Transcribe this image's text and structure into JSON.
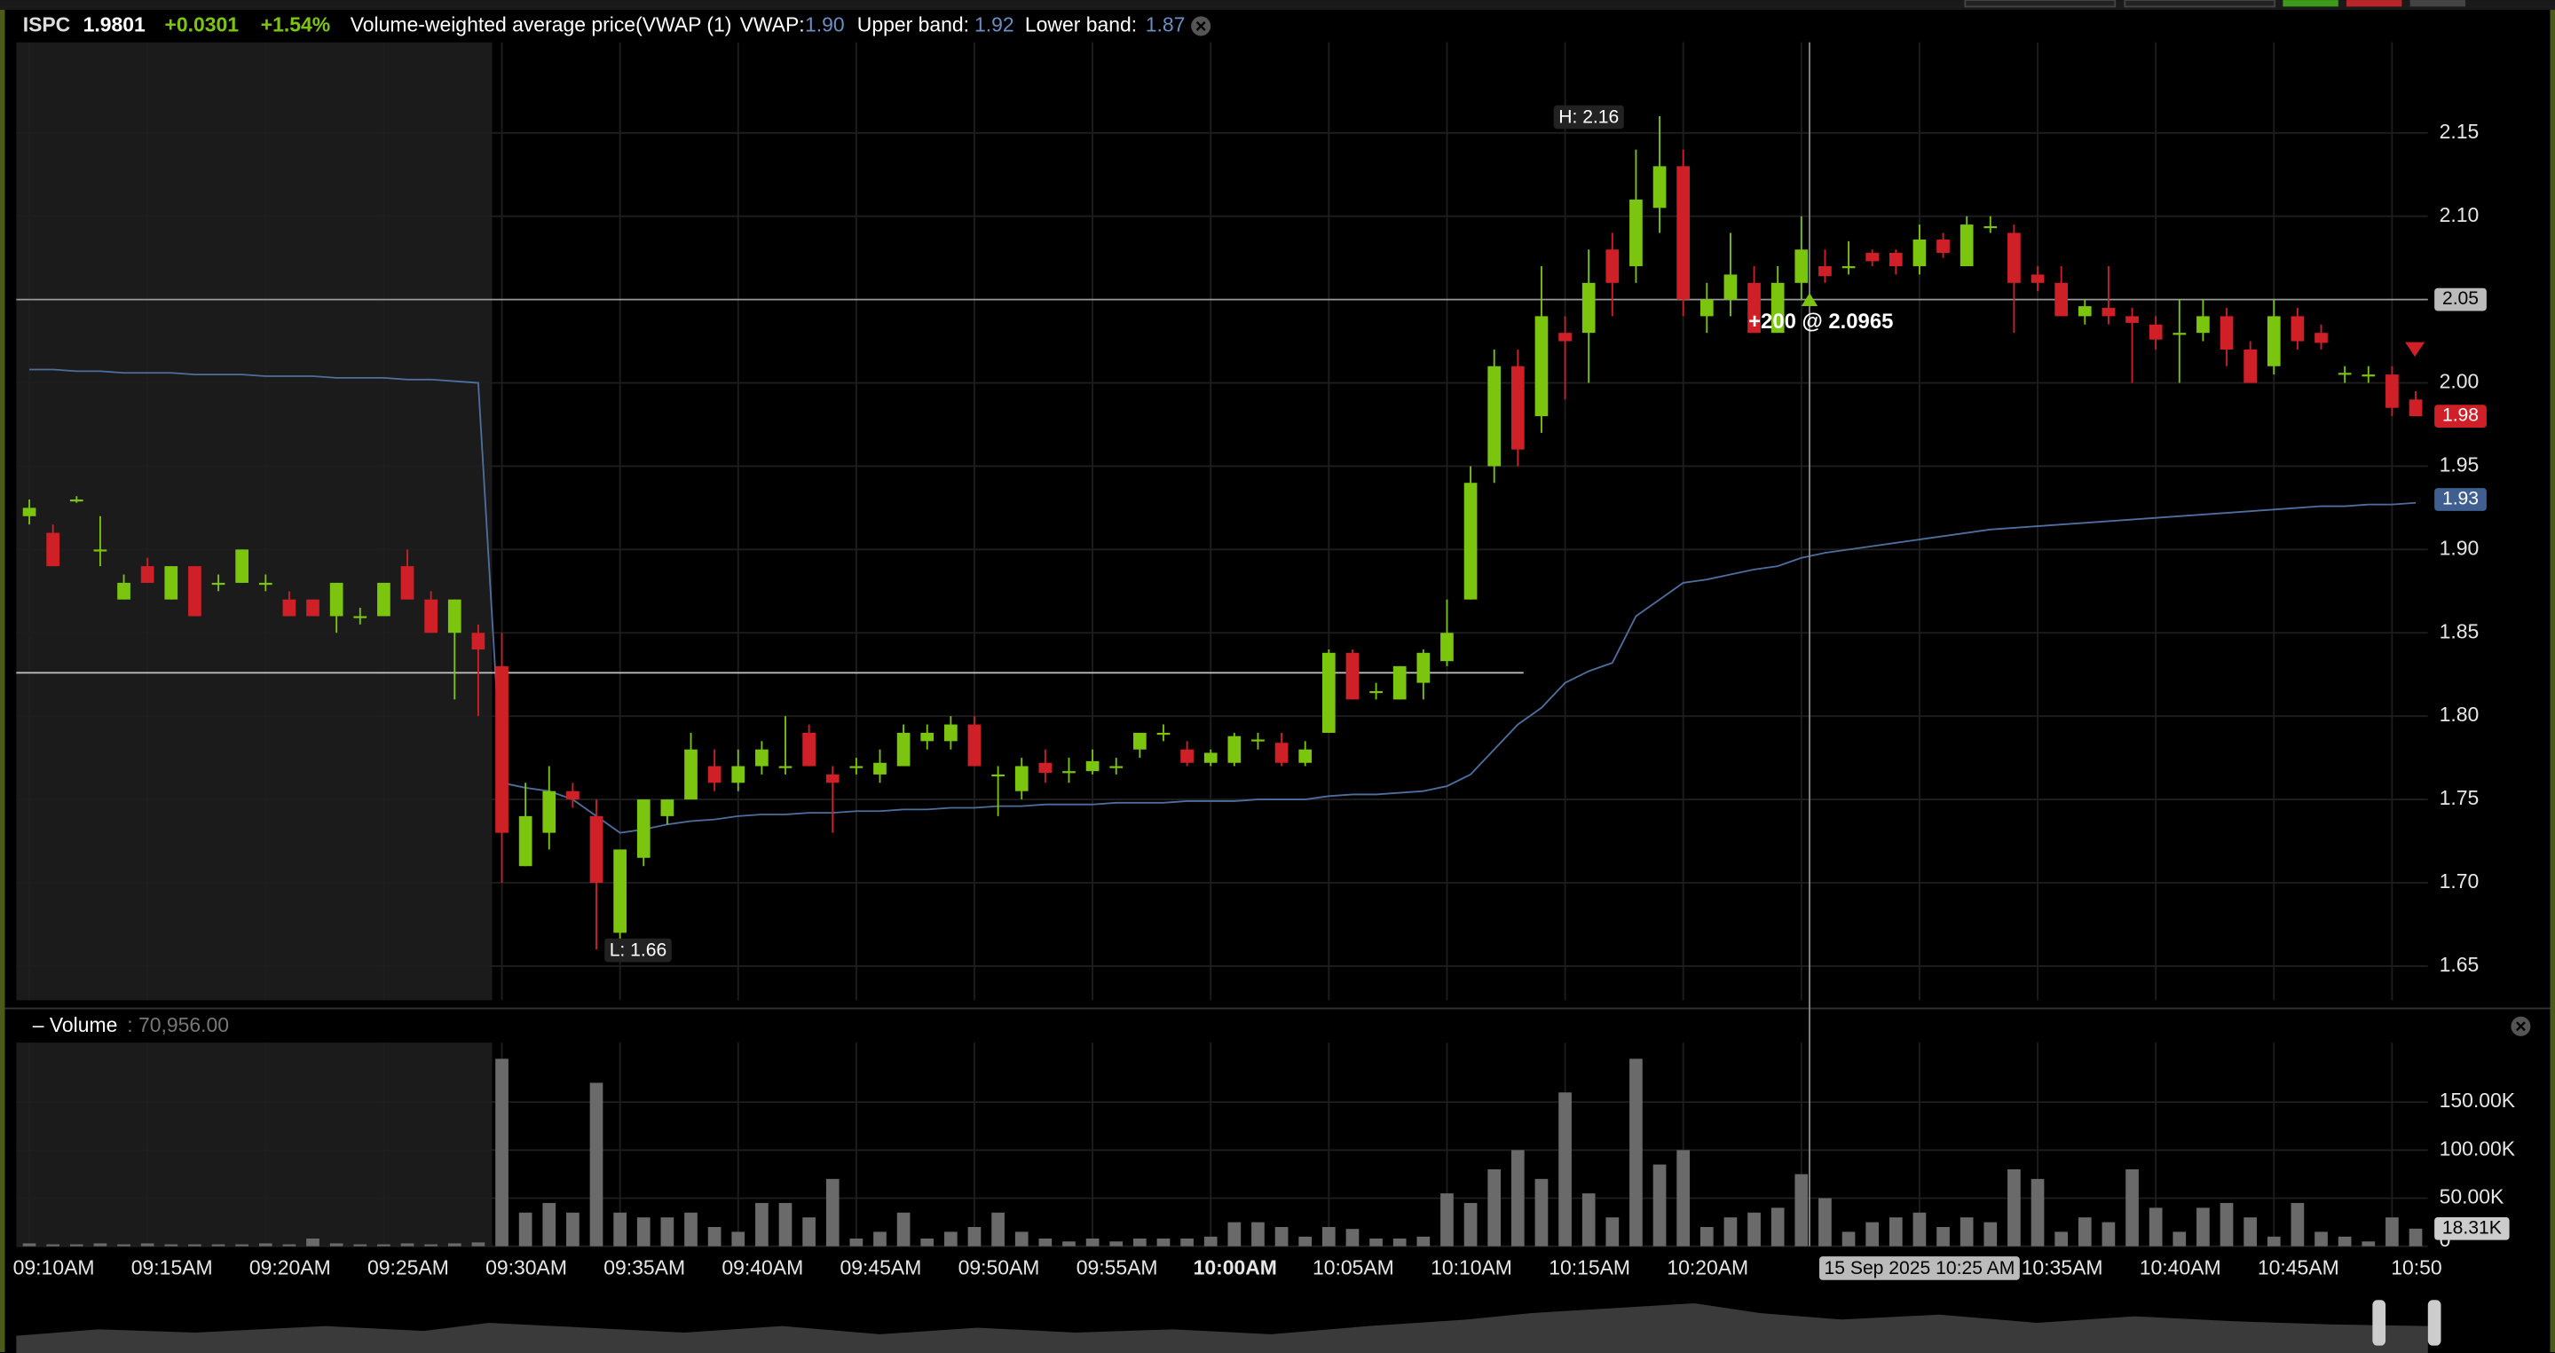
{
  "header": {
    "symbol": "ISPC",
    "price": "1.9801",
    "change": "+0.0301",
    "change_pct": "+1.54%",
    "study": "Volume-weighted average price(VWAP (1)",
    "vwap_label": "VWAP:",
    "vwap_value": "1.90",
    "upper_label": "Upper band:",
    "upper_value": "1.92",
    "lower_label": "Lower band:",
    "lower_value": "1.87"
  },
  "volume_pane": {
    "title": "– Volume",
    "value": ": 70,956.00",
    "last_tag": "18.31K"
  },
  "annotations": {
    "high": "H: 2.16",
    "low": "L: 1.66",
    "fill": "+200 @ 2.0965",
    "crosshair": "15 Sep 2025 10:25 AM"
  },
  "chart_data": {
    "type": "candlestick",
    "categories": [
      "09:10AM",
      null,
      null,
      null,
      null,
      "09:15AM",
      null,
      null,
      null,
      null,
      "09:20AM",
      null,
      null,
      null,
      null,
      "09:25AM",
      null,
      null,
      null,
      null,
      "09:30AM",
      null,
      null,
      null,
      null,
      "09:35AM",
      null,
      null,
      null,
      null,
      "09:40AM",
      null,
      null,
      null,
      null,
      "09:45AM",
      null,
      null,
      null,
      null,
      "09:50AM",
      null,
      null,
      null,
      null,
      "09:55AM",
      null,
      null,
      null,
      null,
      "10:00AM",
      null,
      null,
      null,
      null,
      "10:05AM",
      null,
      null,
      null,
      null,
      "10:10AM",
      null,
      null,
      null,
      null,
      "10:15AM",
      null,
      null,
      null,
      null,
      "10:20AM",
      null,
      null,
      null,
      null,
      null,
      null,
      null,
      null,
      null,
      null,
      null,
      null,
      null,
      null,
      "10:35AM",
      null,
      null,
      null,
      null,
      "10:40AM",
      null,
      null,
      null,
      null,
      "10:45AM",
      null,
      null,
      null,
      null,
      "10:50",
      null
    ],
    "open": [
      1.92,
      1.91,
      1.93,
      1.9,
      1.87,
      1.89,
      1.87,
      1.89,
      1.88,
      1.88,
      1.88,
      1.87,
      1.87,
      1.86,
      1.86,
      1.86,
      1.89,
      1.87,
      1.85,
      1.85,
      1.83,
      1.71,
      1.73,
      1.755,
      1.74,
      1.67,
      1.715,
      1.74,
      1.75,
      1.77,
      1.76,
      1.77,
      1.77,
      1.79,
      1.765,
      1.77,
      1.765,
      1.77,
      1.785,
      1.785,
      1.795,
      1.765,
      1.755,
      1.772,
      1.767,
      1.767,
      1.77,
      1.78,
      1.79,
      1.78,
      1.772,
      1.772,
      1.786,
      1.784,
      1.772,
      1.79,
      1.838,
      1.815,
      1.81,
      1.82,
      1.833,
      1.87,
      1.95,
      2.01,
      1.98,
      2.03,
      2.03,
      2.08,
      2.07,
      2.105,
      2.13,
      2.04,
      2.05,
      2.06,
      2.03,
      2.06,
      2.07,
      2.07,
      2.078,
      2.078,
      2.07,
      2.086,
      2.07,
      2.094,
      2.09,
      2.065,
      2.06,
      2.04,
      2.045,
      2.04,
      2.035,
      2.03,
      2.03,
      2.04,
      2.02,
      2.01,
      2.04,
      2.03,
      2.006,
      2.005,
      2.005,
      1.99
    ],
    "high": [
      1.93,
      1.915,
      1.932,
      1.92,
      1.885,
      1.895,
      1.89,
      1.89,
      1.885,
      1.9,
      1.885,
      1.875,
      1.87,
      1.88,
      1.865,
      1.88,
      1.9,
      1.875,
      1.87,
      1.855,
      1.85,
      1.76,
      1.77,
      1.76,
      1.75,
      1.72,
      1.75,
      1.75,
      1.79,
      1.78,
      1.78,
      1.785,
      1.8,
      1.795,
      1.77,
      1.775,
      1.78,
      1.795,
      1.795,
      1.8,
      1.8,
      1.77,
      1.775,
      1.78,
      1.775,
      1.78,
      1.775,
      1.79,
      1.795,
      1.785,
      1.78,
      1.79,
      1.79,
      1.79,
      1.785,
      1.84,
      1.84,
      1.82,
      1.83,
      1.84,
      1.87,
      1.95,
      2.02,
      2.02,
      2.07,
      2.04,
      2.08,
      2.09,
      2.14,
      2.16,
      2.14,
      2.06,
      2.09,
      2.07,
      2.07,
      2.1,
      2.08,
      2.085,
      2.08,
      2.08,
      2.095,
      2.09,
      2.1,
      2.1,
      2.095,
      2.07,
      2.07,
      2.05,
      2.07,
      2.045,
      2.04,
      2.05,
      2.05,
      2.045,
      2.025,
      2.05,
      2.045,
      2.035,
      2.01,
      2.01,
      2.01,
      1.995
    ],
    "low": [
      1.915,
      1.89,
      1.928,
      1.89,
      1.87,
      1.88,
      1.87,
      1.86,
      1.875,
      1.88,
      1.875,
      1.86,
      1.86,
      1.85,
      1.855,
      1.86,
      1.87,
      1.85,
      1.81,
      1.8,
      1.7,
      1.71,
      1.72,
      1.745,
      1.66,
      1.66,
      1.71,
      1.735,
      1.75,
      1.755,
      1.755,
      1.765,
      1.765,
      1.77,
      1.73,
      1.765,
      1.76,
      1.77,
      1.78,
      1.78,
      1.77,
      1.74,
      1.75,
      1.76,
      1.76,
      1.765,
      1.765,
      1.775,
      1.785,
      1.77,
      1.77,
      1.77,
      1.78,
      1.77,
      1.77,
      1.79,
      1.81,
      1.81,
      1.81,
      1.81,
      1.83,
      1.87,
      1.94,
      1.95,
      1.97,
      1.99,
      2.0,
      2.04,
      2.06,
      2.09,
      2.04,
      2.03,
      2.04,
      2.03,
      2.03,
      2.05,
      2.06,
      2.065,
      2.07,
      2.065,
      2.065,
      2.075,
      2.07,
      2.09,
      2.03,
      2.055,
      2.04,
      2.035,
      2.035,
      2.0,
      2.02,
      2.0,
      2.025,
      2.01,
      2.0,
      2.005,
      2.02,
      2.02,
      2.0,
      2.0,
      1.98,
      1.98
    ],
    "close": [
      1.925,
      1.89,
      1.93,
      1.9,
      1.88,
      1.88,
      1.89,
      1.86,
      1.88,
      1.9,
      1.88,
      1.86,
      1.86,
      1.88,
      1.86,
      1.88,
      1.87,
      1.85,
      1.87,
      1.84,
      1.73,
      1.74,
      1.755,
      1.75,
      1.7,
      1.72,
      1.75,
      1.75,
      1.78,
      1.76,
      1.77,
      1.78,
      1.77,
      1.77,
      1.76,
      1.77,
      1.772,
      1.79,
      1.79,
      1.795,
      1.77,
      1.765,
      1.77,
      1.766,
      1.767,
      1.773,
      1.77,
      1.79,
      1.79,
      1.772,
      1.778,
      1.788,
      1.786,
      1.772,
      1.78,
      1.838,
      1.81,
      1.815,
      1.83,
      1.838,
      1.85,
      1.94,
      2.01,
      1.96,
      2.04,
      2.025,
      2.06,
      2.06,
      2.11,
      2.13,
      2.05,
      2.05,
      2.065,
      2.03,
      2.06,
      2.08,
      2.064,
      2.07,
      2.073,
      2.07,
      2.086,
      2.078,
      2.095,
      2.094,
      2.06,
      2.06,
      2.04,
      2.046,
      2.04,
      2.036,
      2.026,
      2.03,
      2.04,
      2.02,
      2.0,
      2.04,
      2.025,
      2.024,
      2.006,
      2.005,
      1.985,
      1.98
    ],
    "vwap": [
      2.008,
      2.008,
      2.007,
      2.007,
      2.006,
      2.006,
      2.006,
      2.005,
      2.005,
      2.005,
      2.004,
      2.004,
      2.004,
      2.003,
      2.003,
      2.003,
      2.002,
      2.002,
      2.001,
      2.0,
      1.76,
      1.757,
      1.755,
      1.75,
      1.74,
      1.73,
      1.732,
      1.735,
      1.737,
      1.738,
      1.74,
      1.741,
      1.741,
      1.742,
      1.742,
      1.743,
      1.743,
      1.744,
      1.744,
      1.745,
      1.745,
      1.746,
      1.746,
      1.747,
      1.747,
      1.747,
      1.748,
      1.748,
      1.748,
      1.749,
      1.749,
      1.749,
      1.75,
      1.75,
      1.75,
      1.752,
      1.753,
      1.753,
      1.754,
      1.755,
      1.758,
      1.765,
      1.78,
      1.795,
      1.805,
      1.82,
      1.827,
      1.832,
      1.86,
      1.87,
      1.88,
      1.882,
      1.885,
      1.888,
      1.89,
      1.895,
      1.898,
      1.9,
      1.902,
      1.904,
      1.906,
      1.908,
      1.91,
      1.912,
      1.913,
      1.914,
      1.915,
      1.916,
      1.917,
      1.918,
      1.919,
      1.92,
      1.921,
      1.922,
      1.923,
      1.924,
      1.925,
      1.926,
      1.926,
      1.927,
      1.927,
      1.928
    ],
    "volume": [
      3000,
      2000,
      2000,
      3000,
      2000,
      3000,
      2000,
      2000,
      2000,
      2000,
      3000,
      2000,
      8000,
      3000,
      2000,
      2000,
      3000,
      2000,
      3000,
      4000,
      195000,
      35000,
      45000,
      35000,
      170000,
      35000,
      30000,
      30000,
      35000,
      20000,
      15000,
      45000,
      45000,
      30000,
      70000,
      8000,
      15000,
      35000,
      8000,
      15000,
      20000,
      35000,
      15000,
      8000,
      5000,
      8000,
      5000,
      8000,
      8000,
      8000,
      10000,
      25000,
      25000,
      20000,
      10000,
      20000,
      18000,
      8000,
      8000,
      10000,
      55000,
      45000,
      80000,
      100000,
      70000,
      160000,
      55000,
      30000,
      195000,
      85000,
      100000,
      20000,
      30000,
      35000,
      40000,
      75000,
      50000,
      15000,
      25000,
      30000,
      35000,
      20000,
      30000,
      25000,
      80000,
      70000,
      15000,
      30000,
      25000,
      80000,
      40000,
      15000,
      40000,
      45000,
      30000,
      10000,
      45000,
      15000,
      10000,
      5000,
      30000,
      18310
    ],
    "up_color": "#7cc50f",
    "down_color": "#cf2027",
    "vwap_color": "#4d6f9e",
    "volume_color": "#6a6a6a",
    "ylim": [
      1.6295,
      2.2043
    ],
    "yticks": [
      1.65,
      {
        "value": 1.7,
        "label": "1.70"
      },
      1.75,
      {
        "value": 1.8,
        "label": "1.80"
      },
      1.85,
      {
        "value": 1.9,
        "label": "1.90"
      },
      1.95,
      {
        "value": 2.0,
        "label": "2.00"
      },
      2.05,
      {
        "value": 2.1,
        "label": "2.10"
      },
      2.15
    ],
    "volume_ylim": [
      0,
      211800
    ],
    "volume_yticks": [
      0,
      {
        "value": 50000,
        "label": "50.00K"
      },
      {
        "value": 100000,
        "label": "100.00K"
      },
      {
        "value": 150000,
        "label": "150.00K"
      }
    ],
    "price_line": 2.05,
    "order_line": 1.826,
    "last_price": 1.98,
    "vwap_last": 1.93,
    "grid": true
  }
}
